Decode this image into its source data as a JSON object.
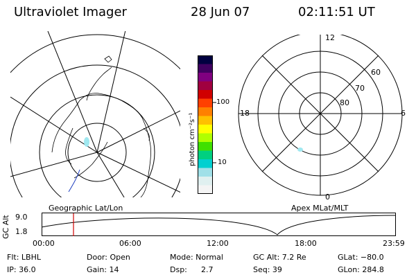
{
  "header": {
    "title": "Ultraviolet Imager",
    "date": "28 Jun 07",
    "time": "02:11:51 UT"
  },
  "left_map": {
    "label": "Geographic Lat/Lon"
  },
  "right_map": {
    "label": "Apex MLat/MLT",
    "mlt_labels": {
      "top": "12",
      "left": "18",
      "right": "6",
      "bottom": "0"
    },
    "lat_labels": [
      "60",
      "70",
      "80"
    ]
  },
  "colorbar": {
    "unit_label": "photon cm⁻²s⁻¹",
    "ticks": [
      "100",
      "10"
    ],
    "scale": "log",
    "colors": [
      "#000040",
      "#400060",
      "#800080",
      "#a00040",
      "#d00000",
      "#ff4000",
      "#ff8000",
      "#ffc000",
      "#ffff00",
      "#b0ff00",
      "#40e000",
      "#00d080",
      "#00d0d0",
      "#a0e0e8",
      "#e0f0f0",
      "#f4f4f4"
    ]
  },
  "timeline": {
    "ylabel": "GC Alt",
    "y_ticks": [
      "9.0",
      "1.8"
    ],
    "x_ticks": [
      "00:00",
      "06:00",
      "12:00",
      "18:00",
      "23:59"
    ],
    "marker_time": "02:11:51",
    "marker_color": "#d00000"
  },
  "info": {
    "filter": "Flt: LBHL",
    "ip": "IP: 36.0",
    "door": "Door: Open",
    "gain": "Gain: 14",
    "mode": "Mode: Normal",
    "dsp_label": "Dsp:",
    "dsp_value": "2.7",
    "gc_alt": "GC Alt: 7.2 Re",
    "seq": "Seq: 39",
    "glat": "GLat: −80.0",
    "glon": "GLon: 284.8"
  }
}
